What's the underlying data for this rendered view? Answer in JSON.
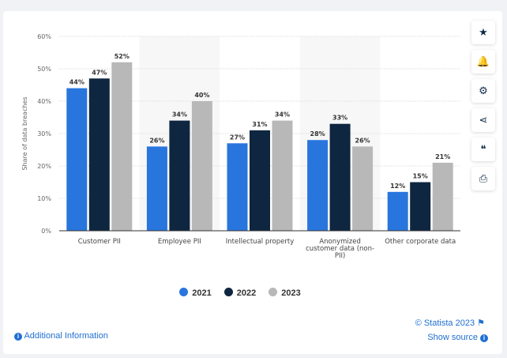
{
  "chart_data": {
    "type": "bar",
    "title": "",
    "xlabel": "",
    "ylabel": "Share of data breaches",
    "ylim": [
      0,
      60
    ],
    "yticks": [
      "0%",
      "10%",
      "20%",
      "30%",
      "40%",
      "50%",
      "60%"
    ],
    "categories": [
      "Customer PII",
      "Employee PII",
      "Intellectual property",
      "Anonymized customer data (non-PII)",
      "Other corporate data"
    ],
    "series": [
      {
        "name": "2021",
        "color": "#2876dd",
        "values": [
          44,
          26,
          27,
          28,
          12
        ]
      },
      {
        "name": "2022",
        "color": "#0f2640",
        "values": [
          47,
          34,
          31,
          33,
          15
        ]
      },
      {
        "name": "2023",
        "color": "#b8b8b8",
        "values": [
          52,
          40,
          34,
          26,
          21
        ]
      }
    ],
    "legend": "bottom",
    "grid": true
  },
  "sidebar": [
    {
      "icon": "star-icon",
      "glyph": "★"
    },
    {
      "icon": "bell-icon",
      "glyph": "🔔"
    },
    {
      "icon": "gear-icon",
      "glyph": "⚙"
    },
    {
      "icon": "share-icon",
      "glyph": "⋖"
    },
    {
      "icon": "quote-icon",
      "glyph": "❝"
    },
    {
      "icon": "print-icon",
      "glyph": "⎙"
    }
  ],
  "footer": {
    "additional_info": "Additional Information",
    "copyright": "© Statista 2023",
    "show_source": "Show source"
  }
}
